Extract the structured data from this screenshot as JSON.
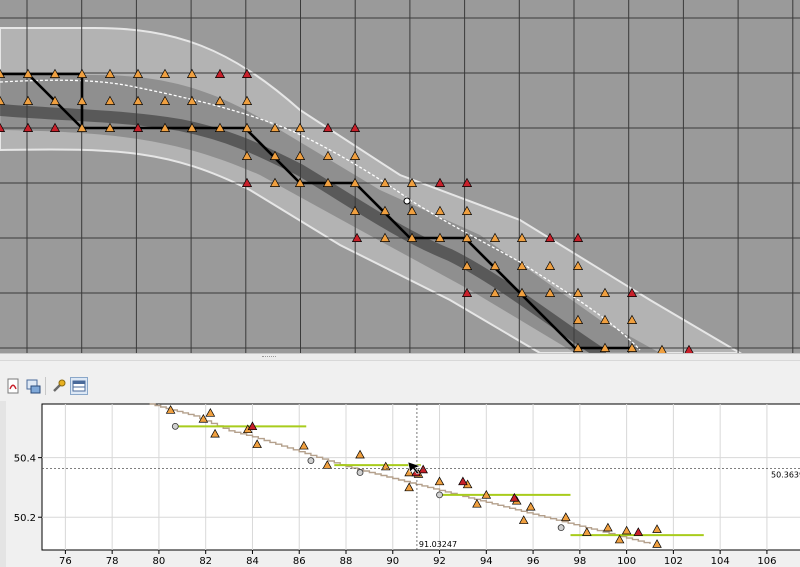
{
  "map": {
    "colors": {
      "background": "#9a9a9a",
      "grid": "#3a3a3a",
      "buffer": "#b8b8b8",
      "buffer_edge": "#e6e6e6",
      "channel": "#6c6c6c",
      "channel_core": "#2a2a2a",
      "path": "#000000",
      "dashed_line": "#ffffff",
      "triangle_orange": "#f0a040",
      "triangle_red": "#c8202a"
    },
    "icons": {
      "map_cursor": "cursor-icon",
      "map_marker": "marker-dot-icon"
    }
  },
  "toolbar": {
    "buttons": [
      {
        "name": "export-pdf-button",
        "icon": "pdf-export-icon"
      },
      {
        "name": "export-image-button",
        "icon": "image-export-icon"
      },
      {
        "name": "settings-button",
        "icon": "wrench-icon"
      },
      {
        "name": "table-view-button",
        "icon": "table-icon",
        "active": true
      }
    ]
  },
  "profile": {
    "x_ticks": [
      "76",
      "78",
      "80",
      "82",
      "84",
      "86",
      "88",
      "90",
      "92",
      "94",
      "96",
      "98",
      "100",
      "102",
      "104",
      "106"
    ],
    "y_ticks": [
      "50.4",
      "50.2"
    ],
    "cursor_x_label": "91.03247",
    "cursor_y_label": "50.3639",
    "colors": {
      "profile_line": "#b4a08c",
      "level_line": "#a8cc1c",
      "triangle_orange": "#f0a040",
      "triangle_red": "#c8202a",
      "circle_fill": "#d0d0d0",
      "grid": "#d8d8d8"
    },
    "chart_data": {
      "type": "scatter",
      "xlim": [
        75,
        107.5
      ],
      "ylim": [
        50.09,
        50.58
      ],
      "cursor": {
        "x": 91.03247,
        "y": 50.3639
      },
      "profile_line": [
        [
          79.6,
          50.58
        ],
        [
          81.5,
          50.54
        ],
        [
          83.0,
          50.49
        ],
        [
          84.0,
          50.47
        ],
        [
          86.0,
          50.42
        ],
        [
          88.0,
          50.37
        ],
        [
          90.0,
          50.33
        ],
        [
          92.0,
          50.29
        ],
        [
          94.0,
          50.25
        ],
        [
          96.0,
          50.21
        ],
        [
          98.0,
          50.17
        ],
        [
          100.0,
          50.13
        ],
        [
          101.0,
          50.11
        ]
      ],
      "level_lines": [
        {
          "x": [
            80.8,
            86.3
          ],
          "y": 50.505
        },
        {
          "x": [
            87.5,
            91.2
          ],
          "y": 50.375
        },
        {
          "x": [
            92.0,
            97.6
          ],
          "y": 50.275
        },
        {
          "x": [
            97.6,
            103.3
          ],
          "y": 50.14
        }
      ],
      "points_orange": [
        [
          80.5,
          50.56
        ],
        [
          82.2,
          50.55
        ],
        [
          81.9,
          50.53
        ],
        [
          83.8,
          50.495
        ],
        [
          82.4,
          50.48
        ],
        [
          84.2,
          50.445
        ],
        [
          86.2,
          50.44
        ],
        [
          88.6,
          50.41
        ],
        [
          87.2,
          50.375
        ],
        [
          89.7,
          50.37
        ],
        [
          90.7,
          50.35
        ],
        [
          91.1,
          50.345
        ],
        [
          90.7,
          50.3
        ],
        [
          92.0,
          50.32
        ],
        [
          93.2,
          50.31
        ],
        [
          94.0,
          50.275
        ],
        [
          95.3,
          50.255
        ],
        [
          93.6,
          50.245
        ],
        [
          95.9,
          50.235
        ],
        [
          97.4,
          50.2
        ],
        [
          95.6,
          50.19
        ],
        [
          99.2,
          50.165
        ],
        [
          100.0,
          50.155
        ],
        [
          101.3,
          50.16
        ],
        [
          98.3,
          50.15
        ],
        [
          99.7,
          50.125
        ],
        [
          101.3,
          50.11
        ]
      ],
      "points_red": [
        [
          84.0,
          50.505
        ],
        [
          91.0,
          50.35
        ],
        [
          93.0,
          50.32
        ],
        [
          95.2,
          50.265
        ],
        [
          100.5,
          50.15
        ],
        [
          91.3,
          50.36
        ]
      ],
      "points_circle": [
        [
          80.7,
          50.505
        ],
        [
          86.5,
          50.39
        ],
        [
          88.6,
          50.35
        ],
        [
          92.0,
          50.275
        ],
        [
          97.2,
          50.165
        ]
      ]
    }
  }
}
